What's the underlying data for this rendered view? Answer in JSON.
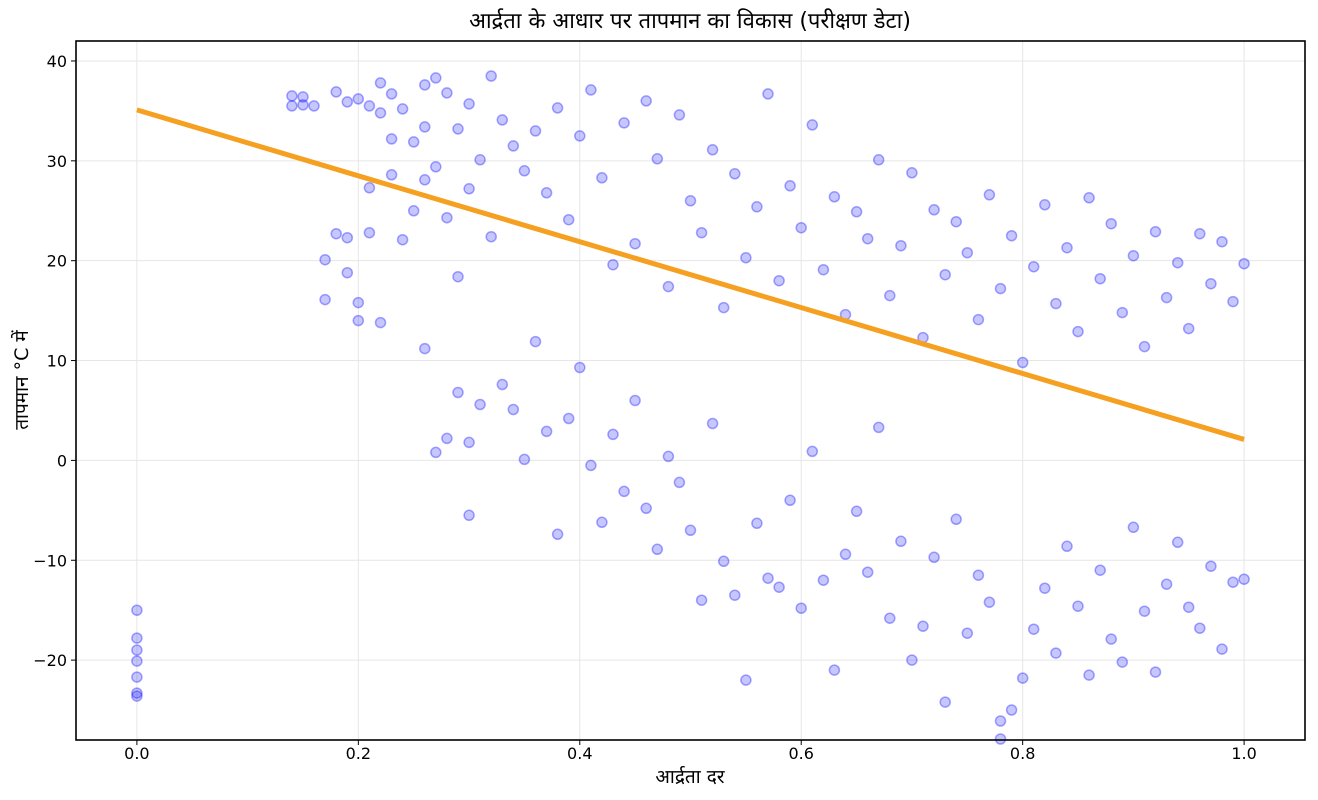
{
  "chart_data": {
    "type": "scatter",
    "title": "आर्द्रता के आधार पर तापमान का विकास (परीक्षण डेटा)",
    "xlabel": "आर्द्रता दर",
    "ylabel": "तापमान °C में",
    "xlim": [
      -0.055,
      1.055
    ],
    "ylim": [
      -28,
      42
    ],
    "xticks": [
      0.0,
      0.2,
      0.4,
      0.6,
      0.8,
      1.0
    ],
    "xtick_labels": [
      "0.0",
      "0.2",
      "0.4",
      "0.6",
      "0.8",
      "1.0"
    ],
    "yticks": [
      -20,
      -10,
      0,
      10,
      20,
      30,
      40
    ],
    "ytick_labels": [
      "−20",
      "−10",
      "0",
      "10",
      "20",
      "30",
      "40"
    ],
    "grid": true,
    "point_color": "#0000ff",
    "line_color": "#f5a020",
    "regression_line": {
      "x": [
        0.0,
        1.0
      ],
      "y": [
        35.1,
        2.1
      ]
    },
    "series": [
      {
        "points": [
          [
            0.0,
            -15.0
          ],
          [
            0.0,
            -17.8
          ],
          [
            0.0,
            -19.0
          ],
          [
            0.0,
            -20.1
          ],
          [
            0.0,
            -21.7
          ],
          [
            0.0,
            -23.3
          ],
          [
            0.0,
            -23.6
          ],
          [
            0.14,
            36.5
          ],
          [
            0.14,
            35.5
          ],
          [
            0.15,
            36.4
          ],
          [
            0.15,
            35.6
          ],
          [
            0.16,
            35.5
          ],
          [
            0.17,
            20.1
          ],
          [
            0.17,
            16.1
          ],
          [
            0.18,
            22.7
          ],
          [
            0.18,
            36.9
          ],
          [
            0.19,
            35.9
          ],
          [
            0.19,
            22.3
          ],
          [
            0.19,
            18.8
          ],
          [
            0.2,
            36.2
          ],
          [
            0.2,
            15.8
          ],
          [
            0.2,
            14.0
          ],
          [
            0.21,
            35.5
          ],
          [
            0.21,
            22.8
          ],
          [
            0.21,
            27.3
          ],
          [
            0.22,
            37.8
          ],
          [
            0.22,
            34.8
          ],
          [
            0.22,
            13.8
          ],
          [
            0.23,
            36.7
          ],
          [
            0.23,
            32.2
          ],
          [
            0.23,
            28.6
          ],
          [
            0.24,
            35.2
          ],
          [
            0.24,
            22.1
          ],
          [
            0.25,
            31.9
          ],
          [
            0.25,
            25.0
          ],
          [
            0.26,
            37.6
          ],
          [
            0.26,
            33.4
          ],
          [
            0.26,
            28.1
          ],
          [
            0.26,
            11.2
          ],
          [
            0.27,
            38.3
          ],
          [
            0.27,
            29.4
          ],
          [
            0.27,
            0.8
          ],
          [
            0.28,
            36.8
          ],
          [
            0.28,
            24.3
          ],
          [
            0.28,
            2.2
          ],
          [
            0.29,
            33.2
          ],
          [
            0.29,
            18.4
          ],
          [
            0.29,
            6.8
          ],
          [
            0.3,
            35.7
          ],
          [
            0.3,
            27.2
          ],
          [
            0.3,
            1.8
          ],
          [
            0.3,
            -5.5
          ],
          [
            0.31,
            30.1
          ],
          [
            0.31,
            5.6
          ],
          [
            0.32,
            38.5
          ],
          [
            0.32,
            22.4
          ],
          [
            0.33,
            34.1
          ],
          [
            0.33,
            7.6
          ],
          [
            0.34,
            31.5
          ],
          [
            0.34,
            5.1
          ],
          [
            0.35,
            29.0
          ],
          [
            0.35,
            0.1
          ],
          [
            0.36,
            33.0
          ],
          [
            0.36,
            11.9
          ],
          [
            0.37,
            26.8
          ],
          [
            0.37,
            2.9
          ],
          [
            0.38,
            35.3
          ],
          [
            0.38,
            -7.4
          ],
          [
            0.39,
            24.1
          ],
          [
            0.39,
            4.2
          ],
          [
            0.4,
            32.5
          ],
          [
            0.4,
            9.3
          ],
          [
            0.41,
            37.1
          ],
          [
            0.41,
            -0.5
          ],
          [
            0.42,
            28.3
          ],
          [
            0.42,
            -6.2
          ],
          [
            0.43,
            19.6
          ],
          [
            0.43,
            2.6
          ],
          [
            0.44,
            33.8
          ],
          [
            0.44,
            -3.1
          ],
          [
            0.45,
            21.7
          ],
          [
            0.45,
            6.0
          ],
          [
            0.46,
            36.0
          ],
          [
            0.46,
            -4.8
          ],
          [
            0.47,
            30.2
          ],
          [
            0.47,
            -8.9
          ],
          [
            0.48,
            17.4
          ],
          [
            0.48,
            0.4
          ],
          [
            0.49,
            34.6
          ],
          [
            0.49,
            -2.2
          ],
          [
            0.5,
            26.0
          ],
          [
            0.5,
            -7.0
          ],
          [
            0.51,
            22.8
          ],
          [
            0.51,
            -14.0
          ],
          [
            0.52,
            31.1
          ],
          [
            0.52,
            3.7
          ],
          [
            0.53,
            15.3
          ],
          [
            0.53,
            -10.1
          ],
          [
            0.54,
            28.7
          ],
          [
            0.54,
            -13.5
          ],
          [
            0.55,
            20.3
          ],
          [
            0.55,
            -22.0
          ],
          [
            0.56,
            25.4
          ],
          [
            0.56,
            -6.3
          ],
          [
            0.57,
            36.7
          ],
          [
            0.57,
            -11.8
          ],
          [
            0.58,
            18.0
          ],
          [
            0.58,
            -12.7
          ],
          [
            0.59,
            27.5
          ],
          [
            0.59,
            -4.0
          ],
          [
            0.6,
            23.3
          ],
          [
            0.6,
            -14.8
          ],
          [
            0.61,
            33.6
          ],
          [
            0.61,
            0.9
          ],
          [
            0.62,
            19.1
          ],
          [
            0.62,
            -12.0
          ],
          [
            0.63,
            26.4
          ],
          [
            0.63,
            -21.0
          ],
          [
            0.64,
            14.6
          ],
          [
            0.64,
            -9.4
          ],
          [
            0.65,
            24.9
          ],
          [
            0.65,
            -5.1
          ],
          [
            0.66,
            22.2
          ],
          [
            0.66,
            -11.2
          ],
          [
            0.67,
            30.1
          ],
          [
            0.67,
            3.3
          ],
          [
            0.68,
            16.5
          ],
          [
            0.68,
            -15.8
          ],
          [
            0.69,
            21.5
          ],
          [
            0.69,
            -8.1
          ],
          [
            0.7,
            28.8
          ],
          [
            0.7,
            -20.0
          ],
          [
            0.71,
            12.3
          ],
          [
            0.71,
            -16.6
          ],
          [
            0.72,
            25.1
          ],
          [
            0.72,
            -9.7
          ],
          [
            0.73,
            18.6
          ],
          [
            0.73,
            -24.2
          ],
          [
            0.74,
            23.9
          ],
          [
            0.74,
            -5.9
          ],
          [
            0.75,
            20.8
          ],
          [
            0.75,
            -17.3
          ],
          [
            0.76,
            14.1
          ],
          [
            0.76,
            -11.5
          ],
          [
            0.77,
            26.6
          ],
          [
            0.77,
            -14.2
          ],
          [
            0.78,
            17.2
          ],
          [
            0.78,
            -27.9
          ],
          [
            0.78,
            -26.1
          ],
          [
            0.79,
            22.5
          ],
          [
            0.79,
            -25.0
          ],
          [
            0.8,
            9.8
          ],
          [
            0.8,
            -21.8
          ],
          [
            0.81,
            19.4
          ],
          [
            0.81,
            -16.9
          ],
          [
            0.82,
            25.6
          ],
          [
            0.82,
            -12.8
          ],
          [
            0.83,
            15.7
          ],
          [
            0.83,
            -19.3
          ],
          [
            0.84,
            21.3
          ],
          [
            0.84,
            -8.6
          ],
          [
            0.85,
            12.9
          ],
          [
            0.85,
            -14.6
          ],
          [
            0.86,
            26.3
          ],
          [
            0.86,
            -21.5
          ],
          [
            0.87,
            18.2
          ],
          [
            0.87,
            -11.0
          ],
          [
            0.88,
            23.7
          ],
          [
            0.88,
            -17.9
          ],
          [
            0.89,
            14.8
          ],
          [
            0.89,
            -20.2
          ],
          [
            0.9,
            20.5
          ],
          [
            0.9,
            -6.7
          ],
          [
            0.91,
            11.4
          ],
          [
            0.91,
            -15.1
          ],
          [
            0.92,
            22.9
          ],
          [
            0.92,
            -21.2
          ],
          [
            0.93,
            16.3
          ],
          [
            0.93,
            -12.4
          ],
          [
            0.94,
            19.8
          ],
          [
            0.94,
            -8.2
          ],
          [
            0.95,
            13.2
          ],
          [
            0.95,
            -14.7
          ],
          [
            0.96,
            22.7
          ],
          [
            0.96,
            -16.8
          ],
          [
            0.97,
            17.7
          ],
          [
            0.97,
            -10.6
          ],
          [
            0.98,
            21.9
          ],
          [
            0.98,
            -18.9
          ],
          [
            0.99,
            15.9
          ],
          [
            0.99,
            -12.2
          ],
          [
            1.0,
            19.7
          ],
          [
            1.0,
            -11.9
          ]
        ]
      }
    ]
  }
}
